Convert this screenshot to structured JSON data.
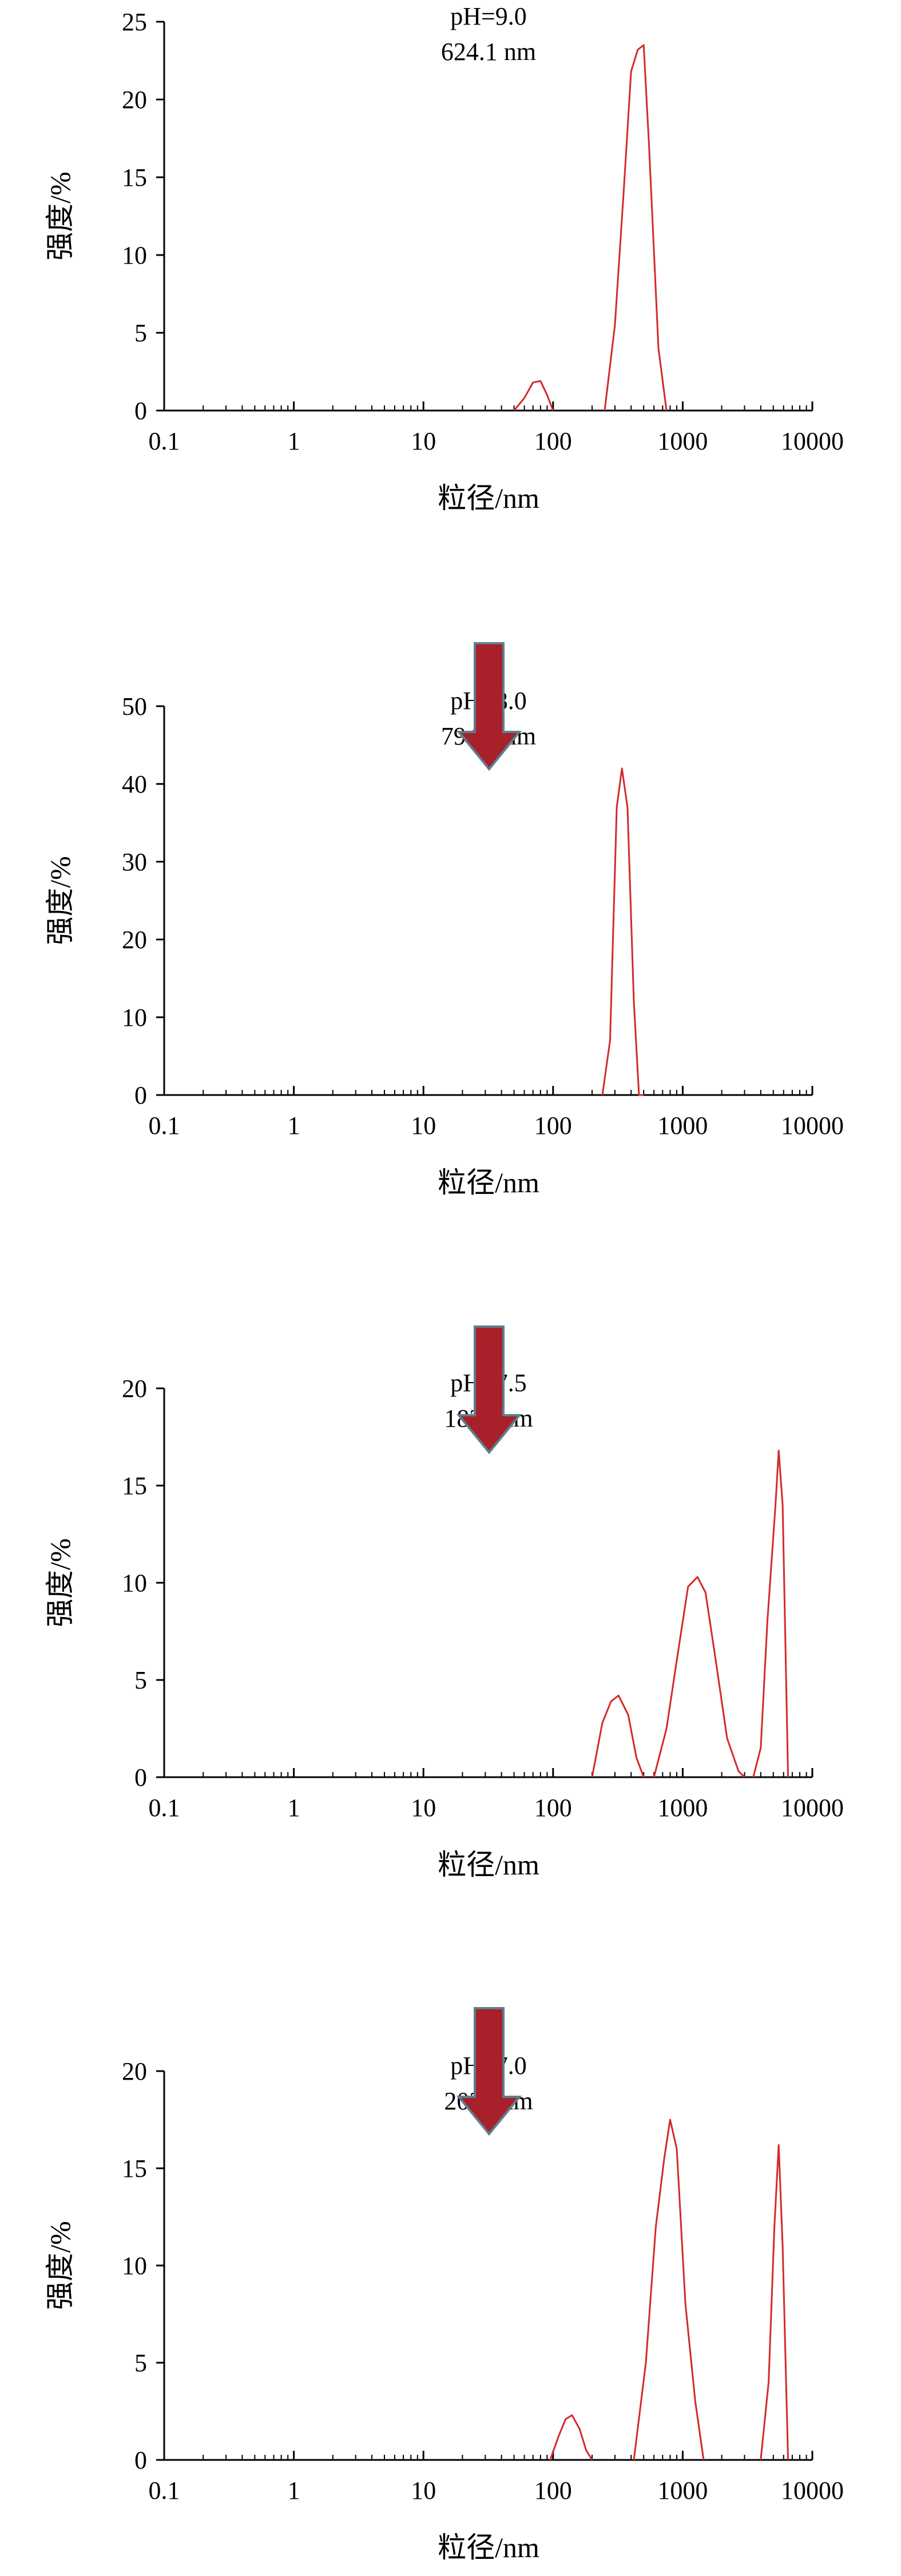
{
  "chart_data": [
    {
      "type": "line",
      "annotation": [
        "pH=9.0",
        "624.1 nm"
      ],
      "xlabel": "粒径/nm",
      "ylabel": "强度/%",
      "xscale": "log",
      "xlim": [
        0.1,
        10000
      ],
      "ylim": [
        0,
        25
      ],
      "yticks": [
        0,
        5,
        10,
        15,
        20,
        25
      ],
      "xticks": [
        "0.1",
        "1",
        "10",
        "100",
        "1000",
        "10000"
      ],
      "series": [
        {
          "x": [
            50,
            60,
            70,
            80,
            90,
            100
          ],
          "y": [
            0,
            0.8,
            1.8,
            1.9,
            1.0,
            0
          ]
        },
        {
          "x": [
            250,
            300,
            350,
            400,
            450,
            500,
            550,
            650,
            750
          ],
          "y": [
            0,
            5.5,
            14,
            21.8,
            23.2,
            23.5,
            17,
            4,
            0
          ]
        }
      ]
    },
    {
      "type": "line",
      "annotation": [
        "pH=8.0",
        "794.7 nm"
      ],
      "xlabel": "粒径/nm",
      "ylabel": "强度/%",
      "xscale": "log",
      "xlim": [
        0.1,
        10000
      ],
      "ylim": [
        0,
        50
      ],
      "yticks": [
        0,
        10,
        20,
        30,
        40,
        50
      ],
      "xticks": [
        "0.1",
        "1",
        "10",
        "100",
        "1000",
        "10000"
      ],
      "series": [
        {
          "x": [
            240,
            275,
            310,
            340,
            375,
            420,
            460,
            500
          ],
          "y": [
            0,
            7,
            37,
            42,
            37,
            12,
            0,
            0
          ]
        }
      ]
    },
    {
      "type": "line",
      "annotation": [
        "pH=7.5",
        "1836 nm"
      ],
      "xlabel": "粒径/nm",
      "ylabel": "强度/%",
      "xscale": "log",
      "xlim": [
        0.1,
        10000
      ],
      "ylim": [
        0,
        20
      ],
      "yticks": [
        0,
        5,
        10,
        15,
        20
      ],
      "xticks": [
        "0.1",
        "1",
        "10",
        "100",
        "1000",
        "10000"
      ],
      "series": [
        {
          "x": [
            200,
            240,
            280,
            320,
            380,
            440,
            500
          ],
          "y": [
            0,
            2.8,
            3.9,
            4.2,
            3.2,
            1.0,
            0
          ]
        },
        {
          "x": [
            600,
            750,
            900,
            1100,
            1300,
            1500,
            1800,
            2200,
            2700,
            3000
          ],
          "y": [
            0,
            2.5,
            6,
            9.8,
            10.3,
            9.5,
            6,
            2,
            0.3,
            0
          ]
        },
        {
          "x": [
            3500,
            4000,
            4500,
            5200,
            5500,
            5900,
            6500
          ],
          "y": [
            0,
            1.5,
            8,
            14,
            16.8,
            14,
            0
          ]
        }
      ]
    },
    {
      "type": "line",
      "annotation": [
        "pH=7.0",
        "2030 nm"
      ],
      "xlabel": "粒径/nm",
      "ylabel": "强度/%",
      "xscale": "log",
      "xlim": [
        0.1,
        10000
      ],
      "ylim": [
        0,
        20
      ],
      "yticks": [
        0,
        5,
        10,
        15,
        20
      ],
      "xticks": [
        "0.1",
        "1",
        "10",
        "100",
        "1000",
        "10000"
      ],
      "series": [
        {
          "x": [
            95,
            110,
            125,
            140,
            160,
            180,
            200
          ],
          "y": [
            0,
            1.2,
            2.1,
            2.3,
            1.6,
            0.5,
            0
          ]
        },
        {
          "x": [
            420,
            520,
            620,
            720,
            800,
            900,
            1050,
            1250,
            1450
          ],
          "y": [
            0,
            5,
            12,
            15.5,
            17.5,
            16,
            8,
            3,
            0
          ]
        },
        {
          "x": [
            4000,
            4600,
            5100,
            5500,
            5900,
            6500
          ],
          "y": [
            0,
            4,
            12,
            16.2,
            11,
            0
          ]
        }
      ]
    }
  ]
}
